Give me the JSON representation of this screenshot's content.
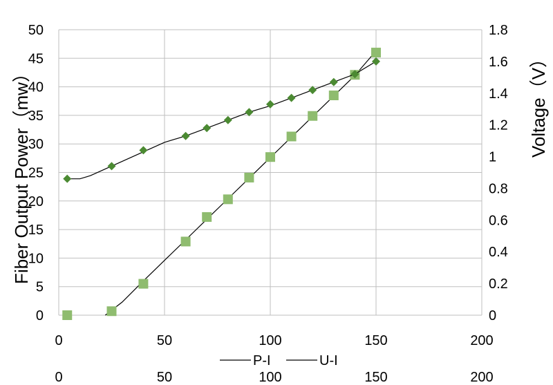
{
  "chart_data": {
    "type": "line",
    "title": "",
    "xlabel": "",
    "ylabel": "Fiber Output Power（mw）",
    "y2label": "Voltage（V）",
    "xlim": [
      0,
      200
    ],
    "ylim": [
      0,
      50
    ],
    "y2lim": [
      0,
      1.8
    ],
    "x_ticks": [
      "0",
      "50",
      "100",
      "150",
      "200"
    ],
    "y_ticks": [
      "0",
      "5",
      "10",
      "15",
      "20",
      "25",
      "30",
      "35",
      "40",
      "45",
      "50"
    ],
    "y2_ticks": [
      "0",
      "0.2",
      "0.4",
      "0.6",
      "0.8",
      "1",
      "1.2",
      "1.4",
      "1.6",
      "1.8"
    ],
    "grid": true,
    "legend": {
      "position": "bottom",
      "entries": [
        "P-I",
        "U-I"
      ]
    },
    "series": [
      {
        "name": "P-I",
        "axis": "left",
        "marker": "square",
        "color": "#8fbc6f",
        "x": [
          4,
          25,
          40,
          60,
          70,
          80,
          90,
          100,
          110,
          120,
          130,
          140,
          150
        ],
        "y": [
          0,
          0.7,
          5.5,
          12.9,
          17.2,
          20.3,
          24.1,
          27.7,
          31.3,
          34.9,
          38.5,
          42.1,
          46.0
        ],
        "trend": {
          "x": [
            22,
            30,
            40,
            50,
            60,
            70,
            80,
            90,
            100,
            110,
            120,
            130,
            140,
            150
          ],
          "y": [
            0,
            2.3,
            6.0,
            9.6,
            13.2,
            16.8,
            20.4,
            24.0,
            27.6,
            31.2,
            34.8,
            38.4,
            42.0,
            46.3
          ]
        }
      },
      {
        "name": "U-I",
        "axis": "right",
        "marker": "diamond",
        "color": "#4b8a32",
        "x": [
          4,
          25,
          40,
          60,
          70,
          80,
          90,
          100,
          110,
          120,
          130,
          140,
          150
        ],
        "y": [
          0.86,
          0.94,
          1.04,
          1.13,
          1.18,
          1.23,
          1.28,
          1.33,
          1.37,
          1.42,
          1.47,
          1.52,
          1.6
        ],
        "trend": {
          "x": [
            4,
            10,
            15,
            20,
            25,
            30,
            40,
            50,
            60,
            70,
            80,
            90,
            100,
            110,
            120,
            130,
            140,
            150
          ],
          "y": [
            0.86,
            0.86,
            0.88,
            0.91,
            0.94,
            0.97,
            1.03,
            1.09,
            1.13,
            1.18,
            1.23,
            1.28,
            1.32,
            1.37,
            1.42,
            1.47,
            1.52,
            1.6
          ]
        }
      }
    ]
  }
}
